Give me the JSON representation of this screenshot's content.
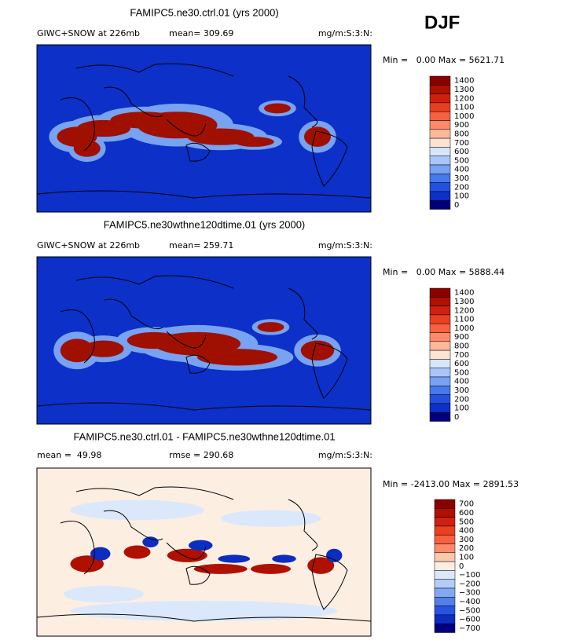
{
  "header": {
    "season": "DJF"
  },
  "panels": [
    {
      "title": "FAMIPC5.ne30.ctrl.01 (yrs 2000)",
      "left_text": "GIWC+SNOW at 226mb",
      "mid_text": "mean= 309.69",
      "units": "mg/m:S:3:N:",
      "range": "Min =   0.00 Max = 5621.71",
      "colorbar": {
        "labels": [
          "1400",
          "1300",
          "1200",
          "1100",
          "1000",
          "900",
          "800",
          "700",
          "600",
          "500",
          "400",
          "300",
          "200",
          "100",
          "0"
        ],
        "colors": [
          "#8b0000",
          "#b01000",
          "#d02010",
          "#e84020",
          "#f86040",
          "#fc8a6a",
          "#fdb89a",
          "#fde3d2",
          "#d6e6fb",
          "#a8c6f8",
          "#78a2f2",
          "#4878ea",
          "#2450e0",
          "#0c30c8",
          "#00007a"
        ]
      }
    },
    {
      "title": "FAMIPC5.ne30wthne120dtime.01 (yrs 2000)",
      "left_text": "GIWC+SNOW at 226mb",
      "mid_text": "mean= 259.71",
      "units": "mg/m:S:3:N:",
      "range": "Min =   0.00 Max = 5888.44",
      "colorbar": {
        "labels": [
          "1400",
          "1300",
          "1200",
          "1100",
          "1000",
          "900",
          "800",
          "700",
          "600",
          "500",
          "400",
          "300",
          "200",
          "100",
          "0"
        ],
        "colors": [
          "#8b0000",
          "#b01000",
          "#d02010",
          "#e84020",
          "#f86040",
          "#fc8a6a",
          "#fdb89a",
          "#fde3d2",
          "#d6e6fb",
          "#a8c6f8",
          "#78a2f2",
          "#4878ea",
          "#2450e0",
          "#0c30c8",
          "#00007a"
        ]
      }
    },
    {
      "title": "FAMIPC5.ne30.ctrl.01 - FAMIPC5.ne30wthne120dtime.01",
      "left_text": "mean =  49.98",
      "mid_text": "rmse = 290.68",
      "units": "mg/m:S:3:N:",
      "range": "Min = -2413.00 Max = 2891.53",
      "colorbar": {
        "labels": [
          "700",
          "600",
          "500",
          "400",
          "300",
          "200",
          "100",
          "0",
          "−100",
          "−200",
          "−300",
          "−400",
          "−500",
          "−600",
          "−700"
        ],
        "colors": [
          "#8b0000",
          "#b01000",
          "#d02010",
          "#e84020",
          "#f86040",
          "#fc8a6a",
          "#fdc8aa",
          "#fdeee2",
          "#dbe8fb",
          "#b2cdf8",
          "#82a8f2",
          "#5280ea",
          "#2654e0",
          "#0c2ec0",
          "#000080"
        ]
      }
    }
  ]
}
